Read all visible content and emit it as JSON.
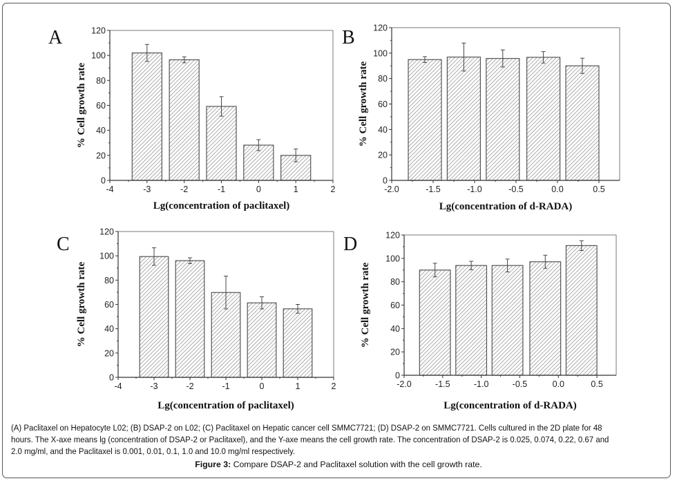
{
  "figure": {
    "caption": "(A) Paclitaxel on Hepatocyte L02; (B) DSAP-2 on L02; (C) Paclitaxel on Hepatic cancer cell SMMC7721; (D) DSAP-2 on SMMC7721. Cells cultured in the 2D plate for 48 hours. The X-axe means lg (concentration of DSAP-2 or Paclitaxel), and the Y-axe means the cell growth rate. The concentration of DSAP-2 is 0.025,  0.074, 0.22, 0.67 and 2.0 mg/ml, and the Paclitaxel is 0.001, 0.01, 0.1, 1.0 and 10.0 mg/ml respectively.",
    "title_label": "Figure 3:",
    "title_text": " Compare DSAP-2 and Paclitaxel solution with the cell growth rate."
  },
  "colors": {
    "bar_outline": "#555555",
    "hatch": "#8a8a8a",
    "axis": "#333333",
    "error_bar": "#444444"
  },
  "chart_data": [
    {
      "panel": "A",
      "type": "bar",
      "xlabel": "Lg(concentration of paclitaxel)",
      "ylabel": "% Cell growth rate",
      "xlim": [
        -4,
        2
      ],
      "ylim": [
        0,
        120
      ],
      "xticks": [
        -4,
        -3,
        -2,
        -1,
        0,
        1,
        2
      ],
      "xtick_labels": [
        "-4",
        "-3",
        "-2",
        "-1",
        "0",
        "1",
        "2"
      ],
      "yticks": [
        0,
        20,
        40,
        60,
        80,
        100,
        120
      ],
      "bar_width": 0.8,
      "x": [
        -3,
        -2,
        -1,
        0,
        1
      ],
      "values": [
        102,
        96.5,
        59.2,
        28.2,
        20
      ],
      "error": [
        6.8,
        2.4,
        7.8,
        4.4,
        5.1
      ],
      "grid": false
    },
    {
      "panel": "B",
      "type": "bar",
      "xlabel": "Lg(concentration of d-RADA)",
      "ylabel": "% Cell growth rate",
      "xlim": [
        -2.0,
        0.75
      ],
      "ylim": [
        0,
        120
      ],
      "xticks": [
        -2.0,
        -1.5,
        -1.0,
        -0.5,
        0.0,
        0.5
      ],
      "xtick_labels": [
        "-2.0",
        "-1.5",
        "-1.0",
        "-0.5",
        "0.0",
        "0.5"
      ],
      "yticks": [
        0,
        20,
        40,
        60,
        80,
        100,
        120
      ],
      "bar_width": 0.4,
      "x": [
        -1.6,
        -1.13,
        -0.66,
        -0.17,
        0.3
      ],
      "values": [
        94.9,
        96.9,
        95.8,
        96.7,
        90
      ],
      "error": [
        2.3,
        11,
        6.7,
        4.5,
        6
      ],
      "grid": false
    },
    {
      "panel": "C",
      "type": "bar",
      "xlabel": "Lg(concentration of paclitaxel)",
      "ylabel": "% Cell growth rate",
      "xlim": [
        -4,
        2
      ],
      "ylim": [
        0,
        120
      ],
      "xticks": [
        -4,
        -3,
        -2,
        -1,
        0,
        1,
        2
      ],
      "xtick_labels": [
        "-4",
        "-3",
        "-2",
        "-1",
        "0",
        "1",
        "2"
      ],
      "yticks": [
        0,
        20,
        40,
        60,
        80,
        100,
        120
      ],
      "bar_width": 0.8,
      "x": [
        -3,
        -2,
        -1,
        0,
        1
      ],
      "values": [
        99.4,
        96,
        69.8,
        61.3,
        56.4
      ],
      "error": [
        7.2,
        2.4,
        13.5,
        5,
        3.6
      ],
      "grid": false
    },
    {
      "panel": "D",
      "type": "bar",
      "xlabel": "Lg(concentration of d-RADA)",
      "ylabel": "% Cell growth rate",
      "xlim": [
        -2.0,
        0.75
      ],
      "ylim": [
        0,
        120
      ],
      "xticks": [
        -2.0,
        -1.5,
        -1.0,
        -0.5,
        0.0,
        0.5
      ],
      "xtick_labels": [
        "-2.0",
        "-1.5",
        "-1.0",
        "-0.5",
        "0.0",
        "0.5"
      ],
      "yticks": [
        0,
        20,
        40,
        60,
        80,
        100,
        120
      ],
      "bar_width": 0.4,
      "x": [
        -1.6,
        -1.13,
        -0.66,
        -0.17,
        0.3
      ],
      "values": [
        90,
        93.9,
        93.9,
        97.1,
        110.9
      ],
      "error": [
        5.8,
        3.6,
        5.5,
        5.6,
        4.2
      ],
      "grid": false
    }
  ]
}
